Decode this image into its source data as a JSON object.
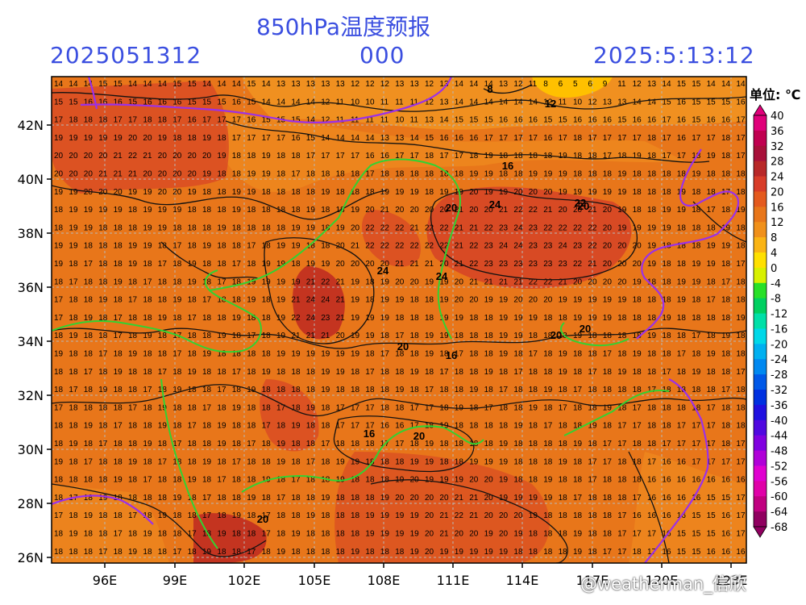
{
  "header": {
    "title": "850hPa温度预报",
    "run_id": "2025051312",
    "forecast_hour": "000",
    "valid_time": "2025:5:13:12"
  },
  "axes": {
    "lat_labels": [
      "42N",
      "40N",
      "38N",
      "36N",
      "34N",
      "32N",
      "30N",
      "28N",
      "26N"
    ],
    "lon_labels": [
      "96E",
      "99E",
      "102E",
      "105E",
      "108E",
      "111E",
      "114E",
      "117E",
      "120E",
      "123E"
    ]
  },
  "legend": {
    "unit_label": "单位: ℃",
    "levels": [
      "40",
      "36",
      "32",
      "28",
      "24",
      "20",
      "16",
      "12",
      "8",
      "4",
      "0",
      "-4",
      "-8",
      "-12",
      "-16",
      "-20",
      "-24",
      "-28",
      "-32",
      "-36",
      "-40",
      "-44",
      "-48",
      "-52",
      "-56",
      "-60",
      "-64",
      "-68"
    ],
    "colors": [
      "#e0007a",
      "#c00050",
      "#a8103a",
      "#b82828",
      "#d83c28",
      "#e45a1e",
      "#e8761a",
      "#f0901a",
      "#fab414",
      "#ffe000",
      "#d8f000",
      "#28e028",
      "#00d060",
      "#00e0a8",
      "#00d8e8",
      "#00b0f0",
      "#0088f0",
      "#0058e8",
      "#0030e0",
      "#2010e0",
      "#5008e0",
      "#8000e0",
      "#b000d8",
      "#e000d0",
      "#e000a8",
      "#c00080",
      "#900060"
    ]
  },
  "colors": {
    "field_base": "#e8761a",
    "field_warm": "#d84a24",
    "field_hot": "#c43420",
    "field_cool": "#f09020",
    "field_cold": "#ffc000",
    "coast": "#9b30e8",
    "basin": "#32d232",
    "contour": "#111111",
    "title": "#3b4fe0"
  },
  "contour_labels": [
    "8",
    "12",
    "16",
    "20",
    "24",
    "20",
    "24",
    "20",
    "16",
    "20",
    "20",
    "24",
    "16",
    "20",
    "20",
    "22"
  ],
  "watermark": "@weatherman_信欣"
}
